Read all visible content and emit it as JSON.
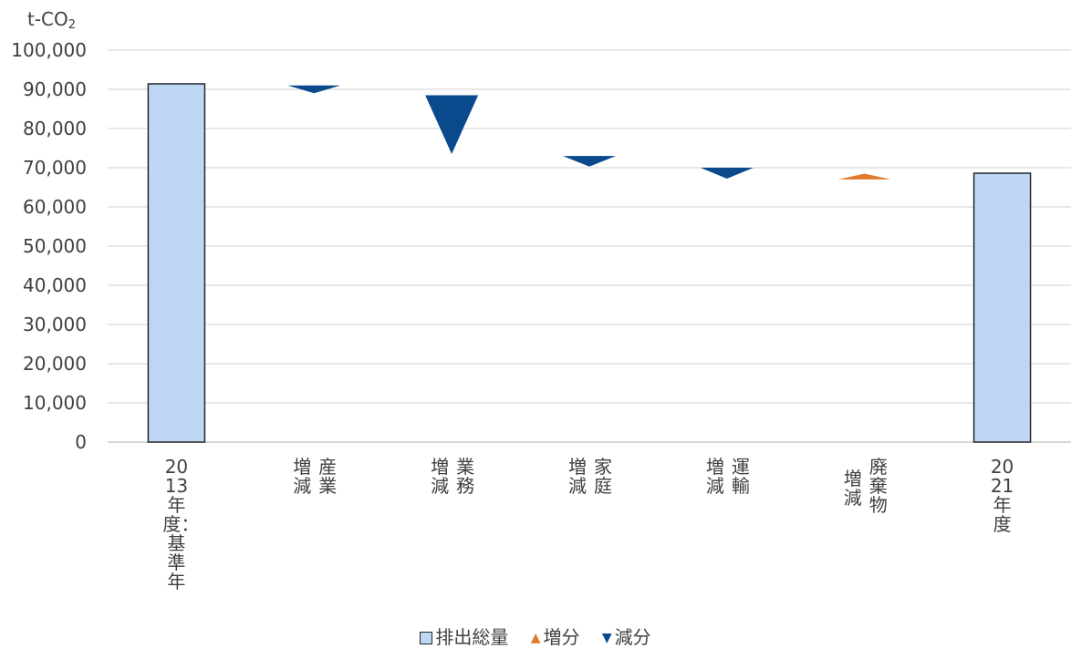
{
  "chart_data": {
    "type": "waterfall",
    "unit_label": "t-CO",
    "unit_subscript": "2",
    "ylim": [
      0,
      100000
    ],
    "yticks": [
      0,
      10000,
      20000,
      30000,
      40000,
      50000,
      60000,
      70000,
      80000,
      90000,
      100000
    ],
    "ytick_labels": [
      "0",
      "10,000",
      "20,000",
      "30,000",
      "40,000",
      "50,000",
      "60,000",
      "70,000",
      "80,000",
      "90,000",
      "100,000"
    ],
    "grid": true,
    "categories": [
      {
        "lines": [
          "2013年度：基準年"
        ]
      },
      {
        "lines": [
          "増減",
          "産業"
        ]
      },
      {
        "lines": [
          "増減",
          "業務"
        ]
      },
      {
        "lines": [
          "増減",
          "家庭"
        ]
      },
      {
        "lines": [
          "増減",
          "運輸"
        ]
      },
      {
        "lines": [
          "増減",
          "廃棄物"
        ]
      },
      {
        "lines": [
          "2021年度"
        ]
      }
    ],
    "items": [
      {
        "kind": "total",
        "value": 91400
      },
      {
        "kind": "decrease",
        "from": 91000,
        "to": 89000
      },
      {
        "kind": "decrease",
        "from": 88500,
        "to": 73500
      },
      {
        "kind": "decrease",
        "from": 73000,
        "to": 70300
      },
      {
        "kind": "decrease",
        "from": 70000,
        "to": 67200
      },
      {
        "kind": "increase",
        "from": 67000,
        "to": 68500
      },
      {
        "kind": "total",
        "value": 68600
      }
    ],
    "legend": [
      {
        "label": "排出総量",
        "kind": "total"
      },
      {
        "label": "増分",
        "kind": "increase",
        "marker": "▲"
      },
      {
        "label": "減分",
        "kind": "decrease",
        "marker": "▼"
      }
    ],
    "legend_position": "bottom",
    "colors": {
      "total": "#BDD7F5",
      "total_border": "#262626",
      "increase": "#E07B2E",
      "decrease": "#0A4A8C",
      "grid": "#D9D9D9",
      "text": "#404040"
    }
  }
}
